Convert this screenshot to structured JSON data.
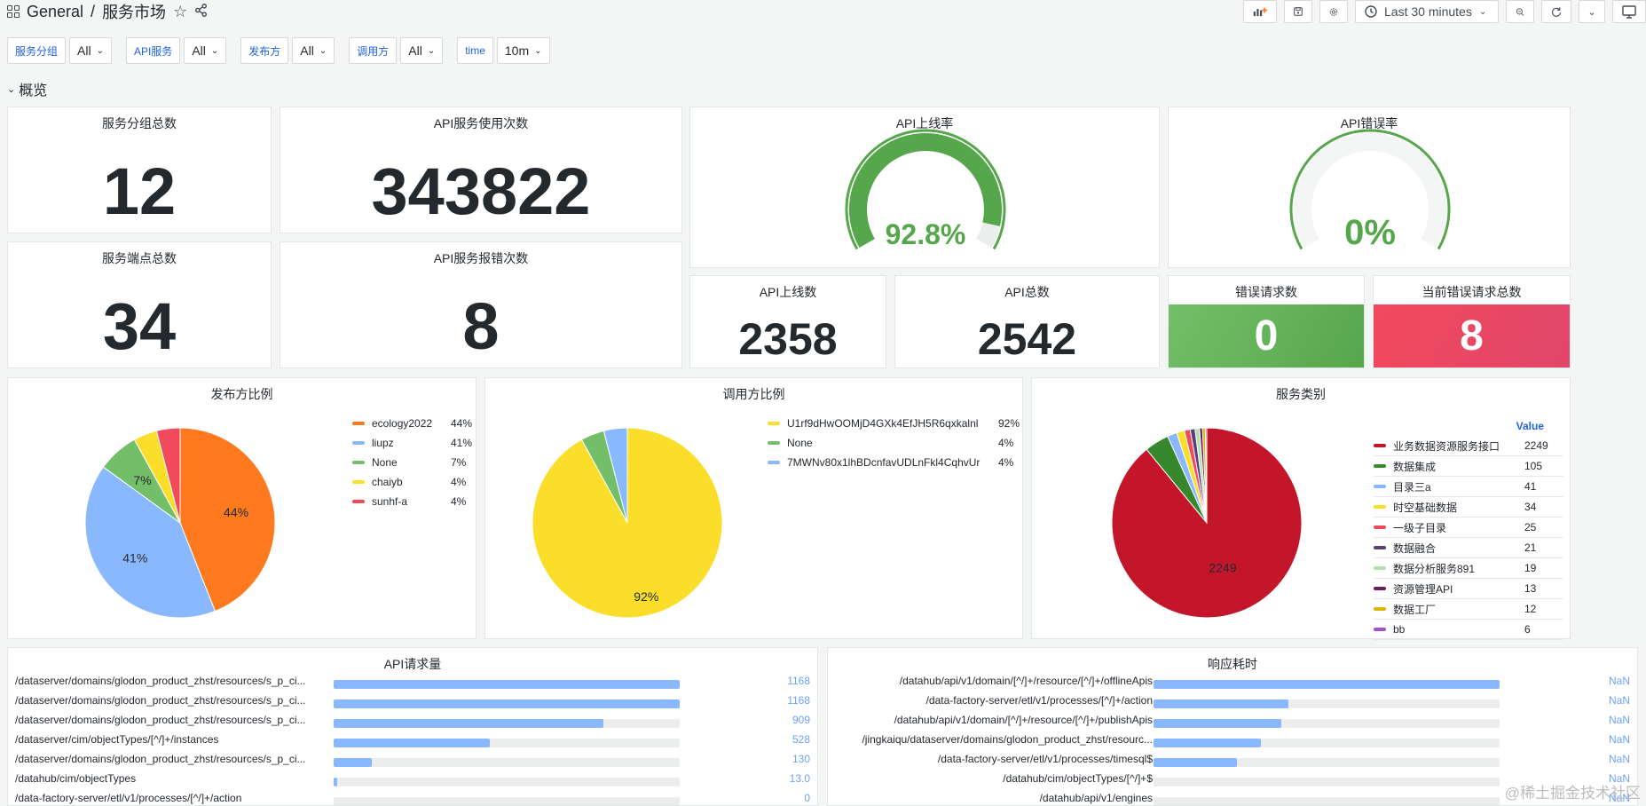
{
  "header": {
    "folder": "General",
    "separator": "/",
    "title": "服务市场",
    "time_range": "Last 30 minutes"
  },
  "filters": [
    {
      "label": "服务分组",
      "value": "All"
    },
    {
      "label": "API服务",
      "value": "All"
    },
    {
      "label": "发布方",
      "value": "All"
    },
    {
      "label": "调用方",
      "value": "All"
    },
    {
      "label": "time",
      "value": "10m"
    }
  ],
  "row": {
    "title": "概览"
  },
  "stats": {
    "group_total": {
      "title": "服务分组总数",
      "value": "12"
    },
    "api_usage": {
      "title": "API服务使用次数",
      "value": "343822"
    },
    "endpoint_total": {
      "title": "服务端点总数",
      "value": "34"
    },
    "api_error_count": {
      "title": "API服务报错次数",
      "value": "8"
    },
    "api_online_count": {
      "title": "API上线数",
      "value": "2358"
    },
    "api_total": {
      "title": "API总数",
      "value": "2542"
    },
    "error_requests": {
      "title": "错误请求数",
      "value": "0"
    },
    "current_error_total": {
      "title": "当前错误请求总数",
      "value": "8"
    }
  },
  "gauges": {
    "online_rate": {
      "title": "API上线率",
      "value": "92.8%",
      "fraction": 0.928
    },
    "error_rate": {
      "title": "API错误率",
      "value": "0%",
      "fraction": 0
    }
  },
  "colors": {
    "green": "#56a64b",
    "red": "#e0466a",
    "blue_link": "#1f62e0",
    "bar": "#8ab8ff"
  },
  "chart_data": [
    {
      "type": "pie",
      "title": "发布方比例",
      "slices": [
        {
          "name": "ecology2022",
          "value": 44,
          "label": "44%",
          "color": "#ff7a1e"
        },
        {
          "name": "liupz",
          "value": 41,
          "label": "41%",
          "color": "#8ab8ff"
        },
        {
          "name": "None",
          "value": 7,
          "label": "7%",
          "color": "#73bf69"
        },
        {
          "name": "chaiyb",
          "value": 4,
          "label": "4%",
          "color": "#fade2a"
        },
        {
          "name": "sunhf-a",
          "value": 4,
          "label": "4%",
          "color": "#f2495c"
        }
      ],
      "data_labels": [
        "44%",
        "41%",
        "7%"
      ]
    },
    {
      "type": "pie",
      "title": "调用方比例",
      "slices": [
        {
          "name": "U1rf9dHwOOMjD4GXk4EfJH5R6qxkalnl",
          "value": 92,
          "label": "92%",
          "color": "#fade2a"
        },
        {
          "name": "None",
          "value": 4,
          "label": "4%",
          "color": "#73bf69"
        },
        {
          "name": "7MWNv80x1lhBDcnfavUDLnFkl4CqhvUr",
          "value": 4,
          "label": "4%",
          "color": "#8ab8ff"
        }
      ],
      "data_labels": [
        "92%"
      ]
    },
    {
      "type": "pie",
      "title": "服务类别",
      "legend_header": "Value",
      "slices": [
        {
          "name": "业务数据资源服务接口",
          "value": 2249,
          "color": "#c4162a"
        },
        {
          "name": "数据集成",
          "value": 105,
          "color": "#37872d"
        },
        {
          "name": "目录三a",
          "value": 41,
          "color": "#8ab8ff"
        },
        {
          "name": "时空基础数据",
          "value": 34,
          "color": "#fade2a"
        },
        {
          "name": "一级子目录",
          "value": 25,
          "color": "#f2495c"
        },
        {
          "name": "数据融合",
          "value": 21,
          "color": "#5a3f7a"
        },
        {
          "name": "数据分析服务891",
          "value": 19,
          "color": "#b3e0ae"
        },
        {
          "name": "资源管理API",
          "value": 13,
          "color": "#6e1e5c"
        },
        {
          "name": "数据工厂",
          "value": 12,
          "color": "#e0b400"
        },
        {
          "name": "bb",
          "value": 6,
          "color": "#a352cc"
        }
      ],
      "data_labels": [
        "2249"
      ]
    },
    {
      "type": "bar",
      "title": "API请求量",
      "max": 1168,
      "rows": [
        {
          "label": "/dataserver/domains/glodon_product_zhst/resources/s_p_ci...",
          "value": 1168,
          "text": "1168"
        },
        {
          "label": "/dataserver/domains/glodon_product_zhst/resources/s_p_ci...",
          "value": 1168,
          "text": "1168"
        },
        {
          "label": "/dataserver/domains/glodon_product_zhst/resources/s_p_ci...",
          "value": 909,
          "text": "909"
        },
        {
          "label": "/dataserver/cim/objectTypes/[^/]+/instances",
          "value": 528,
          "text": "528"
        },
        {
          "label": "/dataserver/domains/glodon_product_zhst/resources/s_p_ci...",
          "value": 130,
          "text": "130"
        },
        {
          "label": "/datahub/cim/objectTypes",
          "value": 13,
          "text": "13.0"
        },
        {
          "label": "/data-factory-server/etl/v1/processes/[^/]+/action",
          "value": 0,
          "text": "0"
        }
      ]
    },
    {
      "type": "bar",
      "title": "响应耗时",
      "rows": [
        {
          "label": "/datahub/api/v1/domain/[^/]+/resource/[^/]+/offlineApis",
          "fraction": 1.0,
          "text": "NaN"
        },
        {
          "label": "/data-factory-server/etl/v1/processes/[^/]+/action",
          "fraction": 0.39,
          "text": "NaN"
        },
        {
          "label": "/datahub/api/v1/domain/[^/]+/resource/[^/]+/publishApis",
          "fraction": 0.37,
          "text": "NaN"
        },
        {
          "label": "/jingkaiqu/dataserver/domains/glodon_product_zhst/resourc...",
          "fraction": 0.31,
          "text": "NaN"
        },
        {
          "label": "/data-factory-server/etl/v1/processes/timesql$",
          "fraction": 0.24,
          "text": "NaN"
        },
        {
          "label": "/datahub/cim/objectTypes/[^/]+$",
          "fraction": 0,
          "text": "NaN"
        },
        {
          "label": "/datahub/api/v1/engines",
          "fraction": 0,
          "text": "NaN"
        }
      ]
    }
  ],
  "watermark": "@稀土掘金技术社区"
}
